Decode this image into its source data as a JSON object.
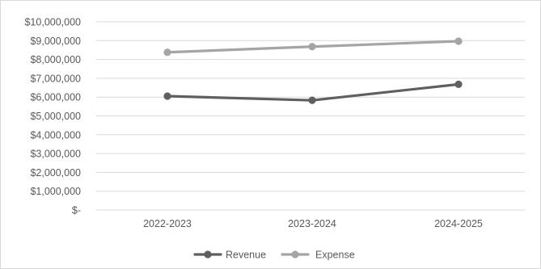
{
  "chart_data": {
    "type": "line",
    "title": "",
    "xlabel": "",
    "ylabel": "",
    "categories": [
      "2022-2023",
      "2023-2024",
      "2024-2025"
    ],
    "series": [
      {
        "name": "Revenue",
        "values": [
          6050000,
          5830000,
          6680000
        ],
        "color": "#5f5f5f"
      },
      {
        "name": "Expense",
        "values": [
          8380000,
          8680000,
          8970000
        ],
        "color": "#a5a5a5"
      }
    ],
    "ylim": [
      0,
      10000000
    ],
    "ytick_values": [
      0,
      1000000,
      2000000,
      3000000,
      4000000,
      5000000,
      6000000,
      7000000,
      8000000,
      9000000,
      10000000
    ],
    "ytick_labels": [
      "$-",
      "$1,000,000",
      "$2,000,000",
      "$3,000,000",
      "$4,000,000",
      "$5,000,000",
      "$6,000,000",
      "$7,000,000",
      "$8,000,000",
      "$9,000,000",
      "$10,000,000"
    ],
    "grid": true,
    "legend": "bottom-center",
    "gridline_color": "#d9d9d9"
  }
}
